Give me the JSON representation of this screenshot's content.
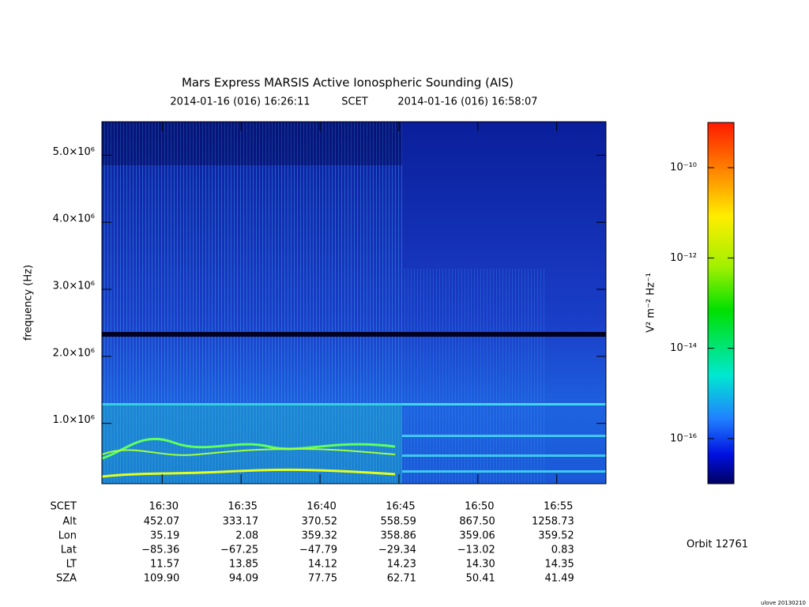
{
  "chart_data": {
    "type": "spectrogram",
    "title": "Mars Express MARSIS Active Ionospheric Sounding (AIS)",
    "start_time": "2014-01-16 (016) 16:26:11",
    "time_system": "SCET",
    "end_time": "2014-01-16 (016) 16:58:07",
    "ylabel": "frequency (Hz)",
    "ylim": [
      100000,
      5500000
    ],
    "yticks": [
      {
        "value": 1000000,
        "label": "1.0×10⁶"
      },
      {
        "value": 2000000,
        "label": "2.0×10⁶"
      },
      {
        "value": 3000000,
        "label": "3.0×10⁶"
      },
      {
        "value": 4000000,
        "label": "4.0×10⁶"
      },
      {
        "value": 5000000,
        "label": "5.0×10⁶"
      }
    ],
    "xlim": [
      "16:26:11",
      "16:58:07"
    ],
    "xticks": [
      "16:30",
      "16:35",
      "16:40",
      "16:45",
      "16:50",
      "16:55"
    ],
    "ephemeris": {
      "row_labels": [
        "SCET",
        "Alt",
        "Lon",
        "Lat",
        "LT",
        "SZA"
      ],
      "rows": [
        [
          "452.07",
          "333.17",
          "370.52",
          "558.59",
          "867.50",
          "1258.73"
        ],
        [
          "35.19",
          "2.08",
          "359.32",
          "358.86",
          "359.06",
          "359.52"
        ],
        [
          "−85.36",
          "−67.25",
          "−47.79",
          "−29.34",
          "−13.02",
          "0.83"
        ],
        [
          "11.57",
          "13.85",
          "14.12",
          "14.23",
          "14.30",
          "14.35"
        ],
        [
          "109.90",
          "94.09",
          "77.75",
          "62.71",
          "50.41",
          "41.49"
        ]
      ]
    },
    "colorbar": {
      "label": "V² m⁻² Hz⁻¹",
      "log_scale": true,
      "clim": [
        1e-17,
        1e-09
      ],
      "ticks": [
        {
          "value": 1e-10,
          "label": "10⁻¹⁰"
        },
        {
          "value": 1e-12,
          "label": "10⁻¹²"
        },
        {
          "value": 1e-14,
          "label": "10⁻¹⁴"
        },
        {
          "value": 1e-16,
          "label": "10⁻¹⁶"
        }
      ]
    },
    "orbit": "Orbit 12761",
    "footer": "ulove 20130210"
  }
}
